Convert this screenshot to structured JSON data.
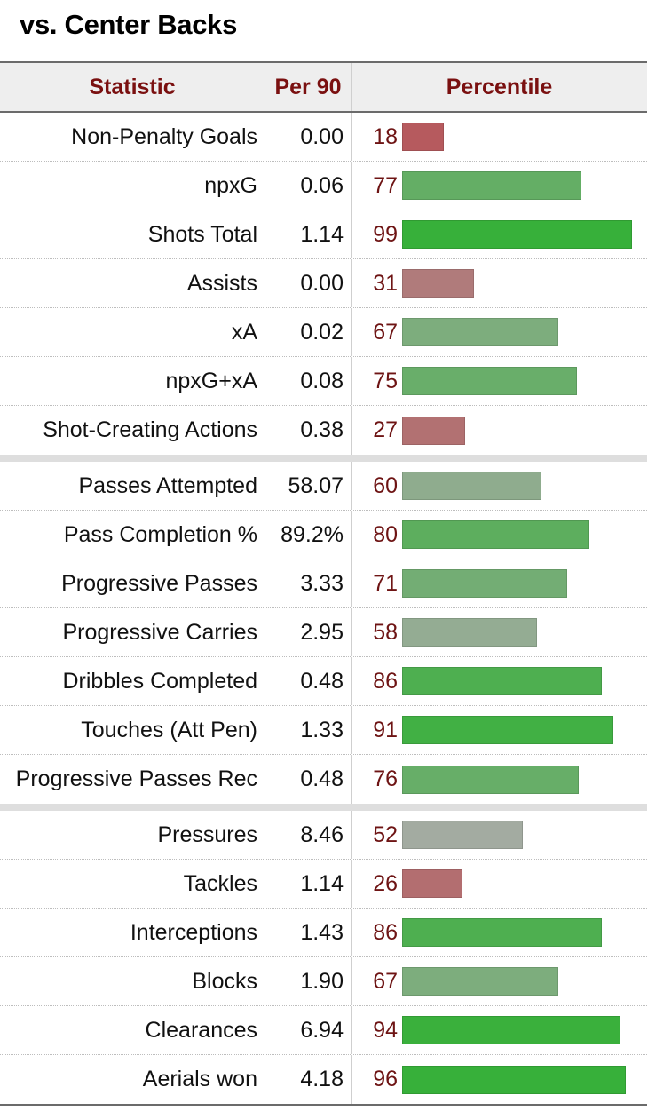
{
  "title": "vs. Center Backs",
  "columns": {
    "statistic": "Statistic",
    "per90": "Per 90",
    "percentile": "Percentile"
  },
  "colors": {
    "header_text": "#7a1010",
    "percentile_text": "#6e1414",
    "bar_low": "#b65a5e",
    "bar_mid": "#a8aba6",
    "bar_high": "#37b03a"
  },
  "groups": [
    [
      {
        "statistic": "Non-Penalty Goals",
        "per90": "0.00",
        "percentile": 18
      },
      {
        "statistic": "npxG",
        "per90": "0.06",
        "percentile": 77
      },
      {
        "statistic": "Shots Total",
        "per90": "1.14",
        "percentile": 99
      },
      {
        "statistic": "Assists",
        "per90": "0.00",
        "percentile": 31
      },
      {
        "statistic": "xA",
        "per90": "0.02",
        "percentile": 67
      },
      {
        "statistic": "npxG+xA",
        "per90": "0.08",
        "percentile": 75
      },
      {
        "statistic": "Shot-Creating Actions",
        "per90": "0.38",
        "percentile": 27
      }
    ],
    [
      {
        "statistic": "Passes Attempted",
        "per90": "58.07",
        "percentile": 60
      },
      {
        "statistic": "Pass Completion %",
        "per90": "89.2%",
        "percentile": 80
      },
      {
        "statistic": "Progressive Passes",
        "per90": "3.33",
        "percentile": 71
      },
      {
        "statistic": "Progressive Carries",
        "per90": "2.95",
        "percentile": 58
      },
      {
        "statistic": "Dribbles Completed",
        "per90": "0.48",
        "percentile": 86
      },
      {
        "statistic": "Touches (Att Pen)",
        "per90": "1.33",
        "percentile": 91
      },
      {
        "statistic": "Progressive Passes Rec",
        "per90": "0.48",
        "percentile": 76
      }
    ],
    [
      {
        "statistic": "Pressures",
        "per90": "8.46",
        "percentile": 52
      },
      {
        "statistic": "Tackles",
        "per90": "1.14",
        "percentile": 26
      },
      {
        "statistic": "Interceptions",
        "per90": "1.43",
        "percentile": 86
      },
      {
        "statistic": "Blocks",
        "per90": "1.90",
        "percentile": 67
      },
      {
        "statistic": "Clearances",
        "per90": "6.94",
        "percentile": 94
      },
      {
        "statistic": "Aerials won",
        "per90": "4.18",
        "percentile": 96
      }
    ]
  ]
}
